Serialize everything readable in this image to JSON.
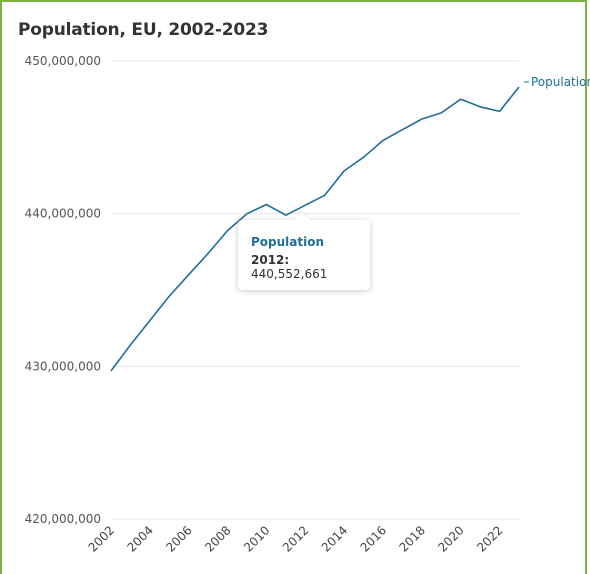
{
  "chart_data": {
    "type": "line",
    "title": "Population, EU, 2002-2023",
    "x": [
      2002,
      2003,
      2004,
      2005,
      2006,
      2007,
      2008,
      2009,
      2010,
      2011,
      2012,
      2013,
      2014,
      2015,
      2016,
      2017,
      2018,
      2019,
      2020,
      2021,
      2022,
      2023
    ],
    "series": [
      {
        "name": "Population",
        "values": [
          429700000,
          431400000,
          433000000,
          434600000,
          436000000,
          437400000,
          438900000,
          440000000,
          440600000,
          439900000,
          440552661,
          441200000,
          442800000,
          443700000,
          444800000,
          445500000,
          446200000,
          446600000,
          447500000,
          447000000,
          446700000,
          448300000
        ]
      }
    ],
    "ylim": [
      420000000,
      450000000
    ],
    "yticks": [
      "420,000,000",
      "430,000,000",
      "440,000,000",
      "450,000,000"
    ],
    "xticks": [
      "2002",
      "2004",
      "2006",
      "2008",
      "2010",
      "2012",
      "2014",
      "2016",
      "2018",
      "2020",
      "2022"
    ],
    "grid": true,
    "legend": "right",
    "line_color": "#1f6e96"
  },
  "tooltip": {
    "series": "Population",
    "year": "2012:",
    "value": "440,552,661"
  }
}
